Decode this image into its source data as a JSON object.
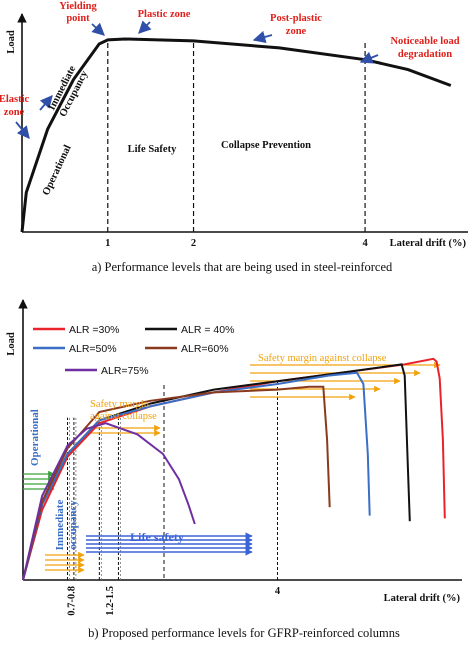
{
  "colors": {
    "red_label": "#e0201b",
    "arrow_blue": "#2f4fa8",
    "alr30": "#e8242a",
    "alr40": "#111111",
    "alr50": "#3b6fc6",
    "alr60": "#8a3a1e",
    "alr75": "#6f2fa3",
    "orange": "#f2a20c",
    "green": "#3aa23a",
    "blue_arrow": "#3c63d6"
  },
  "chart_data": [
    {
      "type": "line",
      "title": "a) Performance levels that are being used in steel-reinforced",
      "ylabel": "Load",
      "xlabel": "Lateral drift (%)",
      "xlim": [
        0,
        5.2
      ],
      "ylim": [
        0,
        1
      ],
      "tick_values": [
        1,
        2,
        4
      ],
      "tick_labels": [
        "1",
        "2",
        "4"
      ],
      "series": [
        {
          "x": [
            0,
            0.05,
            0.3,
            0.6,
            0.9,
            1.0,
            1.2,
            2.0,
            3.0,
            4.0,
            4.5,
            5.0
          ],
          "values": [
            0,
            0.2,
            0.52,
            0.77,
            0.95,
            0.97,
            0.975,
            0.965,
            0.93,
            0.87,
            0.82,
            0.74
          ]
        }
      ],
      "vlines": [
        1,
        2,
        4
      ],
      "point_labels": {
        "yielding": "Yielding\npoint",
        "plastic": "Plastic zone",
        "postplastic": "Post-plastic\nzone",
        "degradation": "Noticeable load\ndegradation",
        "elastic": "Elastic\nzone"
      },
      "zone_labels": {
        "operational": "Operational",
        "io": "Immediate\nOccupancy",
        "ls": "Life Safety",
        "cp": "Collapse Prevention"
      }
    },
    {
      "type": "line",
      "title": "b) Proposed performance levels for GFRP-reinforced columns",
      "ylabel": "Load",
      "xlabel": "Lateral drift (%)",
      "xlim": [
        0,
        6.9
      ],
      "ylim": [
        0,
        1
      ],
      "tick_values": [
        0.75,
        1.35,
        4
      ],
      "tick_labels": [
        "0.7-0.8",
        "1.2-1.5",
        "4"
      ],
      "series": [
        {
          "name": "ALR =30%",
          "x": [
            0,
            0.3,
            0.7,
            1.2,
            2,
            3,
            4,
            5,
            6,
            6.45,
            6.5,
            6.55,
            6.6,
            6.63
          ],
          "values": [
            0,
            0.25,
            0.44,
            0.56,
            0.62,
            0.67,
            0.71,
            0.74,
            0.77,
            0.79,
            0.78,
            0.72,
            0.5,
            0.22
          ]
        },
        {
          "name": "ALR = 40%",
          "x": [
            0,
            0.3,
            0.7,
            1.2,
            2,
            3,
            4,
            5,
            5.95,
            6.0,
            6.05,
            6.08
          ],
          "values": [
            0,
            0.27,
            0.45,
            0.57,
            0.63,
            0.68,
            0.71,
            0.74,
            0.77,
            0.73,
            0.4,
            0.21
          ]
        },
        {
          "name": "ALR=50%",
          "x": [
            0,
            0.3,
            0.7,
            1.2,
            2,
            3,
            4,
            4.8,
            5.25,
            5.35,
            5.42,
            5.45
          ],
          "values": [
            0,
            0.27,
            0.45,
            0.57,
            0.62,
            0.67,
            0.7,
            0.73,
            0.74,
            0.7,
            0.45,
            0.23
          ]
        },
        {
          "name": "ALR=60%",
          "x": [
            0,
            0.3,
            0.7,
            1.2,
            2,
            3,
            4,
            4.5,
            4.72,
            4.78,
            4.82
          ],
          "values": [
            0,
            0.28,
            0.47,
            0.6,
            0.64,
            0.67,
            0.68,
            0.69,
            0.69,
            0.5,
            0.26
          ]
        },
        {
          "name": "ALR=75%",
          "x": [
            0,
            0.3,
            0.7,
            1.0,
            1.3,
            1.8,
            2.2,
            2.45,
            2.6,
            2.7
          ],
          "values": [
            0,
            0.3,
            0.48,
            0.54,
            0.56,
            0.52,
            0.45,
            0.36,
            0.27,
            0.2
          ]
        }
      ],
      "vlines": [
        0.7,
        0.8,
        1.2,
        1.5,
        4
      ],
      "annotations": {
        "margin_big": "Safety margin against collapse",
        "margin_small": "Safety margin\nagainst collapse",
        "operational": "Operational",
        "io": "Immediate\noccupancy",
        "ls": "Life safety"
      },
      "legend_position": "top-left"
    }
  ]
}
